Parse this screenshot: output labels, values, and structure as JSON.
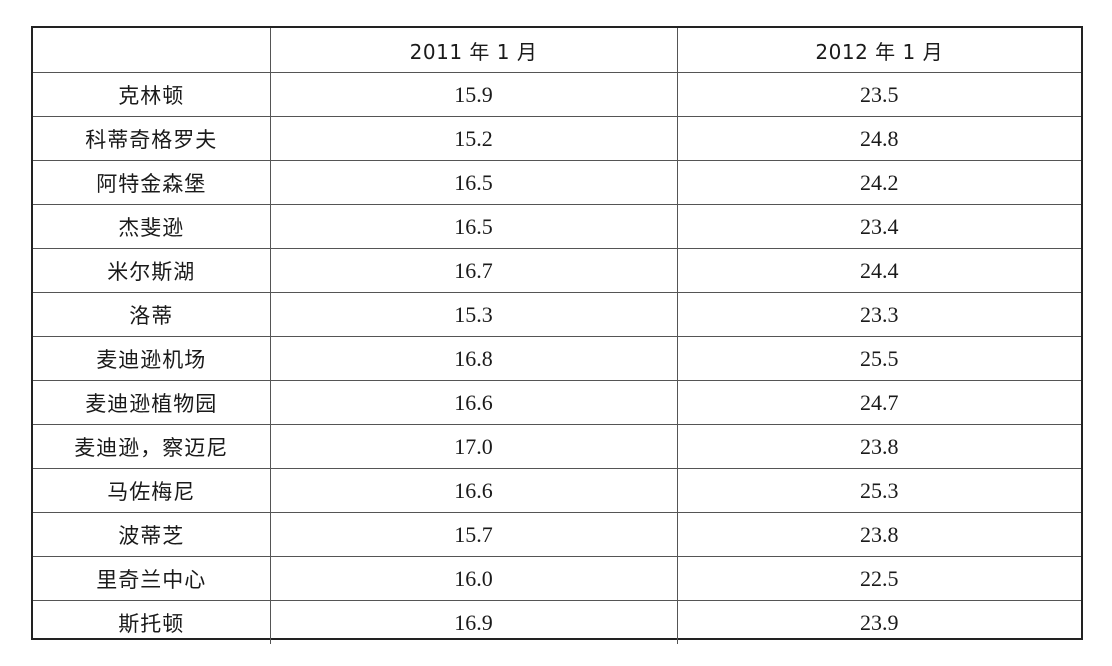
{
  "table": {
    "headers": [
      "",
      "2011 年 1 月",
      "2012 年 1 月"
    ],
    "rows": [
      {
        "station": "克林顿",
        "jan2011": "15.9",
        "jan2012": "23.5"
      },
      {
        "station": "科蒂奇格罗夫",
        "jan2011": "15.2",
        "jan2012": "24.8"
      },
      {
        "station": "阿特金森堡",
        "jan2011": "16.5",
        "jan2012": "24.2"
      },
      {
        "station": "杰斐逊",
        "jan2011": "16.5",
        "jan2012": "23.4"
      },
      {
        "station": "米尔斯湖",
        "jan2011": "16.7",
        "jan2012": "24.4"
      },
      {
        "station": "洛蒂",
        "jan2011": "15.3",
        "jan2012": "23.3"
      },
      {
        "station": "麦迪逊机场",
        "jan2011": "16.8",
        "jan2012": "25.5"
      },
      {
        "station": "麦迪逊植物园",
        "jan2011": "16.6",
        "jan2012": "24.7"
      },
      {
        "station": "麦迪逊，察迈尼",
        "jan2011": "17.0",
        "jan2012": "23.8"
      },
      {
        "station": "马佐梅尼",
        "jan2011": "16.6",
        "jan2012": "25.3"
      },
      {
        "station": "波蒂芝",
        "jan2011": "15.7",
        "jan2012": "23.8"
      },
      {
        "station": "里奇兰中心",
        "jan2011": "16.0",
        "jan2012": "22.5"
      },
      {
        "station": "斯托顿",
        "jan2011": "16.9",
        "jan2012": "23.9"
      }
    ]
  }
}
